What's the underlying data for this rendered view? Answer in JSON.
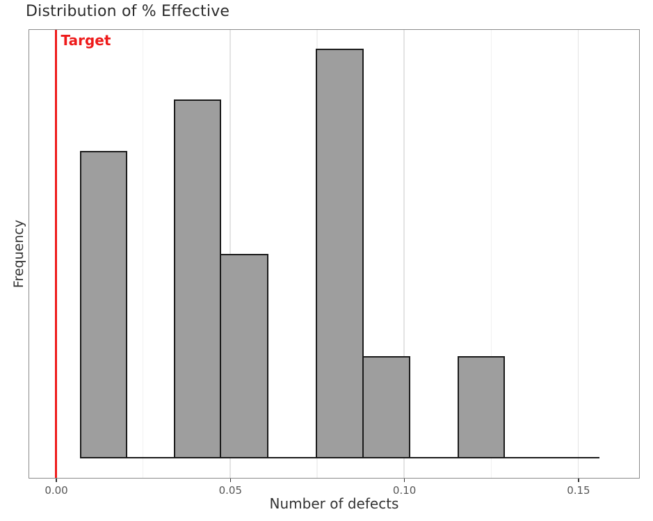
{
  "chart_data": {
    "type": "bar",
    "subtype": "histogram",
    "title": "Distribution of % Effective",
    "xlabel": "Number of defects",
    "ylabel": "Frequency",
    "bin_edges": [
      0.0068,
      0.0204,
      0.0339,
      0.0475,
      0.0611,
      0.0747,
      0.0883,
      0.1018,
      0.1154,
      0.129,
      0.1426,
      0.1562
    ],
    "counts": [
      6,
      0,
      7,
      4,
      0,
      8,
      2,
      0,
      2,
      0,
      0
    ],
    "xlim": [
      -0.0077,
      0.1675
    ],
    "ylim": [
      -0.374,
      8.363
    ],
    "x_major_ticks": [
      0.0,
      0.05,
      0.1,
      0.15
    ],
    "x_major_tick_labels": [
      "0.00",
      "0.05",
      "0.10",
      "0.15"
    ],
    "x_minor_gridlines": [
      0.025,
      0.075,
      0.125
    ],
    "y_tick_labels_visible": false,
    "grid": "vertical-only",
    "legend": "none",
    "reference_line": {
      "x": 0.0,
      "label": "Target",
      "color": "#ee1b1b"
    },
    "colors": {
      "bar_fill": "#9e9e9e",
      "bar_edge": "#1a1a1a",
      "baseline": "#1a1a1a",
      "grid_major": "#e3e3e3",
      "grid_minor": "#f1f1f1",
      "plot_border": "#8a8a8a",
      "tick_mark": "#333333",
      "tick_label": "#555555",
      "axis_label": "#333333",
      "title": "#2b2b2b"
    }
  }
}
